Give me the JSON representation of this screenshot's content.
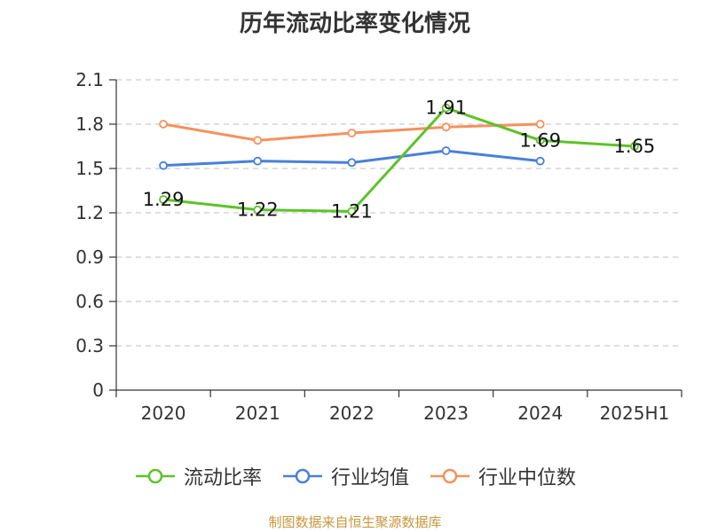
{
  "title": "历年流动比率变化情况",
  "source_note": "制图数据来自恒生聚源数据库",
  "colors": {
    "current_ratio": "#5ec22a",
    "industry_mean": "#4a7fd8",
    "industry_median": "#f5915c",
    "axis": "#333333",
    "grid": "#cccccc"
  },
  "chart_data": {
    "type": "line",
    "categories": [
      "2020",
      "2021",
      "2022",
      "2023",
      "2024",
      "2025H1"
    ],
    "ylim": [
      0,
      2.1
    ],
    "yticks": [
      "0",
      "0.3",
      "0.6",
      "0.9",
      "1.2",
      "1.5",
      "1.8",
      "2.1"
    ],
    "grid": true,
    "legend_position": "bottom",
    "series": [
      {
        "name": "流动比率",
        "color_key": "current_ratio",
        "values": [
          1.29,
          1.22,
          1.21,
          1.91,
          1.69,
          1.65
        ],
        "labels": [
          "1.29",
          "1.22",
          "1.21",
          "1.91",
          "1.69",
          "1.65"
        ]
      },
      {
        "name": "行业均值",
        "color_key": "industry_mean",
        "values": [
          1.52,
          1.55,
          1.54,
          1.62,
          1.55,
          null
        ]
      },
      {
        "name": "行业中位数",
        "color_key": "industry_median",
        "values": [
          1.8,
          1.69,
          1.74,
          1.78,
          1.8,
          null
        ]
      }
    ]
  }
}
